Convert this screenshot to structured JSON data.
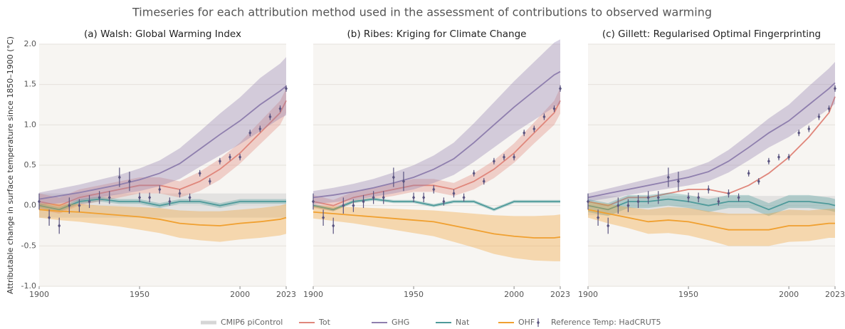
{
  "figure_title": "Timeseries for each attribution method used in the assessment of contributions to observed warming",
  "chart_data": [
    {
      "type": "line",
      "title": "(a) Walsh: Global Warming Index",
      "ylabel": "Attributable change in surface temperature since 1850–1900 (°C)",
      "show_ytick_labels": true,
      "x": [
        1900,
        1910,
        1920,
        1930,
        1940,
        1950,
        1960,
        1970,
        1980,
        1990,
        2000,
        2010,
        2020,
        2023
      ],
      "xlim": [
        1900,
        2023
      ],
      "xticks": [
        1900,
        1950,
        2000,
        2023
      ],
      "ylim": [
        -1,
        2
      ],
      "yticks": [
        {
          "value": -1,
          "label": "-1.0"
        },
        {
          "value": -0.5,
          "label": "-0.5"
        },
        {
          "value": 0,
          "label": "0.0"
        },
        {
          "value": 0.5,
          "label": "0.5"
        },
        {
          "value": 1,
          "label": "1.0"
        },
        {
          "value": 1.5,
          "label": "1.5"
        },
        {
          "value": 2,
          "label": "2.0"
        }
      ],
      "grid": true,
      "series": [
        {
          "name": "CMIP6 piControl",
          "color": "#d6d6d6",
          "lower": [
            -0.15,
            -0.15,
            -0.15,
            -0.15,
            -0.15,
            -0.15,
            -0.15,
            -0.15,
            -0.15,
            -0.15,
            -0.15,
            -0.15,
            -0.15,
            -0.15
          ],
          "upper": [
            0.15,
            0.15,
            0.15,
            0.15,
            0.15,
            0.15,
            0.15,
            0.15,
            0.15,
            0.15,
            0.15,
            0.15,
            0.15,
            0.15
          ]
        },
        {
          "name": "Tot",
          "color": "#e0877c",
          "values": [
            0.05,
            0.0,
            0.1,
            0.15,
            0.2,
            0.25,
            0.25,
            0.2,
            0.3,
            0.45,
            0.65,
            0.9,
            1.15,
            1.3
          ],
          "lower": [
            -0.05,
            -0.1,
            0.0,
            0.05,
            0.1,
            0.15,
            0.15,
            0.1,
            0.18,
            0.32,
            0.52,
            0.76,
            1.0,
            1.15
          ],
          "upper": [
            0.15,
            0.1,
            0.2,
            0.25,
            0.3,
            0.35,
            0.35,
            0.3,
            0.42,
            0.58,
            0.78,
            1.04,
            1.3,
            1.45
          ]
        },
        {
          "name": "GHG",
          "color": "#8f7fae",
          "values": [
            0.08,
            0.12,
            0.16,
            0.21,
            0.26,
            0.32,
            0.4,
            0.52,
            0.7,
            0.88,
            1.05,
            1.25,
            1.42,
            1.48
          ],
          "lower": [
            0.0,
            0.03,
            0.06,
            0.1,
            0.14,
            0.18,
            0.24,
            0.33,
            0.48,
            0.62,
            0.76,
            0.92,
            1.08,
            1.12
          ],
          "upper": [
            0.16,
            0.21,
            0.26,
            0.32,
            0.38,
            0.46,
            0.56,
            0.71,
            0.92,
            1.14,
            1.34,
            1.58,
            1.76,
            1.84
          ]
        },
        {
          "name": "Nat",
          "color": "#4e9a9a",
          "values": [
            0.0,
            -0.05,
            0.05,
            0.08,
            0.05,
            0.05,
            0.0,
            0.05,
            0.05,
            0.0,
            0.05,
            0.05,
            0.05,
            0.05
          ],
          "lower": [
            -0.03,
            -0.08,
            0.02,
            0.05,
            0.02,
            0.02,
            -0.03,
            0.02,
            0.02,
            -0.03,
            0.02,
            0.02,
            0.02,
            0.02
          ],
          "upper": [
            0.03,
            -0.02,
            0.08,
            0.11,
            0.08,
            0.08,
            0.03,
            0.08,
            0.08,
            0.03,
            0.08,
            0.08,
            0.08,
            0.08
          ]
        },
        {
          "name": "OHF",
          "color": "#f0a030",
          "values": [
            -0.05,
            -0.07,
            -0.08,
            -0.1,
            -0.12,
            -0.14,
            -0.17,
            -0.22,
            -0.24,
            -0.25,
            -0.22,
            -0.2,
            -0.17,
            -0.15
          ],
          "lower": [
            -0.15,
            -0.18,
            -0.2,
            -0.23,
            -0.26,
            -0.3,
            -0.34,
            -0.4,
            -0.43,
            -0.45,
            -0.42,
            -0.4,
            -0.37,
            -0.35
          ],
          "upper": [
            0.03,
            0.02,
            0.02,
            0.0,
            -0.01,
            -0.02,
            -0.03,
            -0.06,
            -0.07,
            -0.07,
            -0.05,
            -0.03,
            0.0,
            0.02
          ]
        }
      ],
      "observations": {
        "name": "Reference Temp: HadCRUT5",
        "color": "#5a5480",
        "x": [
          1900,
          1905,
          1910,
          1915,
          1920,
          1925,
          1930,
          1935,
          1940,
          1945,
          1950,
          1955,
          1960,
          1965,
          1970,
          1975,
          1980,
          1985,
          1990,
          1995,
          2000,
          2005,
          2010,
          2015,
          2020,
          2023
        ],
        "values": [
          0.05,
          -0.15,
          -0.25,
          0.0,
          0.0,
          0.05,
          0.1,
          0.1,
          0.35,
          0.3,
          0.1,
          0.1,
          0.2,
          0.05,
          0.15,
          0.1,
          0.4,
          0.3,
          0.55,
          0.6,
          0.6,
          0.9,
          0.95,
          1.1,
          1.2,
          1.45
        ],
        "errors": [
          0.1,
          0.1,
          0.1,
          0.1,
          0.08,
          0.08,
          0.08,
          0.08,
          0.12,
          0.12,
          0.06,
          0.06,
          0.05,
          0.05,
          0.05,
          0.05,
          0.04,
          0.04,
          0.04,
          0.04,
          0.04,
          0.04,
          0.04,
          0.04,
          0.04,
          0.04
        ]
      }
    },
    {
      "type": "line",
      "title": "(b) Ribes: Kriging for Climate Change",
      "show_ytick_labels": false,
      "x": [
        1900,
        1910,
        1920,
        1930,
        1940,
        1950,
        1960,
        1970,
        1980,
        1990,
        2000,
        2010,
        2020,
        2023
      ],
      "xlim": [
        1900,
        2023
      ],
      "xticks": [
        1900,
        1950,
        2000,
        2023
      ],
      "ylim": [
        -1,
        2
      ],
      "yticks": [
        -1,
        -0.5,
        0,
        0.5,
        1,
        1.5,
        2
      ],
      "grid": true,
      "series": [
        {
          "name": "Tot",
          "color": "#e0877c",
          "values": [
            0.05,
            0.0,
            0.1,
            0.15,
            0.2,
            0.25,
            0.25,
            0.2,
            0.3,
            0.45,
            0.65,
            0.9,
            1.15,
            1.3
          ],
          "lower": [
            -0.03,
            -0.07,
            0.03,
            0.08,
            0.12,
            0.17,
            0.17,
            0.12,
            0.2,
            0.34,
            0.53,
            0.77,
            1.0,
            1.14
          ],
          "upper": [
            0.13,
            0.07,
            0.17,
            0.22,
            0.28,
            0.33,
            0.33,
            0.28,
            0.4,
            0.56,
            0.77,
            1.03,
            1.3,
            1.46
          ]
        },
        {
          "name": "GHG",
          "color": "#8f7fae",
          "values": [
            0.1,
            0.13,
            0.17,
            0.22,
            0.28,
            0.35,
            0.45,
            0.58,
            0.78,
            1.0,
            1.22,
            1.42,
            1.62,
            1.66
          ],
          "lower": [
            0.02,
            0.04,
            0.07,
            0.11,
            0.15,
            0.2,
            0.28,
            0.38,
            0.54,
            0.72,
            0.9,
            1.06,
            1.22,
            1.26
          ],
          "upper": [
            0.18,
            0.22,
            0.27,
            0.33,
            0.41,
            0.5,
            0.62,
            0.78,
            1.02,
            1.28,
            1.54,
            1.78,
            2.02,
            2.06
          ]
        },
        {
          "name": "Nat",
          "color": "#4e9a9a",
          "values": [
            0.0,
            -0.05,
            0.05,
            0.08,
            0.05,
            0.05,
            0.0,
            0.05,
            0.05,
            -0.05,
            0.05,
            0.05,
            0.05,
            0.05
          ],
          "lower": [
            -0.02,
            -0.07,
            0.03,
            0.06,
            0.03,
            0.03,
            -0.02,
            0.03,
            0.03,
            -0.07,
            0.03,
            0.03,
            0.03,
            0.03
          ],
          "upper": [
            0.02,
            -0.03,
            0.07,
            0.1,
            0.07,
            0.07,
            0.02,
            0.07,
            0.07,
            -0.03,
            0.07,
            0.07,
            0.07,
            0.07
          ]
        },
        {
          "name": "OHF",
          "color": "#f0a030",
          "values": [
            -0.08,
            -0.1,
            -0.12,
            -0.14,
            -0.16,
            -0.18,
            -0.2,
            -0.25,
            -0.3,
            -0.35,
            -0.38,
            -0.4,
            -0.4,
            -0.39
          ],
          "lower": [
            -0.16,
            -0.19,
            -0.22,
            -0.26,
            -0.3,
            -0.34,
            -0.38,
            -0.45,
            -0.52,
            -0.6,
            -0.65,
            -0.68,
            -0.69,
            -0.69
          ],
          "upper": [
            0.0,
            -0.01,
            -0.02,
            -0.03,
            -0.04,
            -0.05,
            -0.06,
            -0.08,
            -0.1,
            -0.12,
            -0.13,
            -0.13,
            -0.12,
            -0.11
          ]
        }
      ],
      "observations": {
        "name": "Reference Temp: HadCRUT5",
        "color": "#5a5480",
        "x": [
          1900,
          1905,
          1910,
          1915,
          1920,
          1925,
          1930,
          1935,
          1940,
          1945,
          1950,
          1955,
          1960,
          1965,
          1970,
          1975,
          1980,
          1985,
          1990,
          1995,
          2000,
          2005,
          2010,
          2015,
          2020,
          2023
        ],
        "values": [
          0.05,
          -0.15,
          -0.25,
          0.0,
          0.0,
          0.05,
          0.1,
          0.1,
          0.35,
          0.3,
          0.1,
          0.1,
          0.2,
          0.05,
          0.15,
          0.1,
          0.4,
          0.3,
          0.55,
          0.6,
          0.6,
          0.9,
          0.95,
          1.1,
          1.2,
          1.45
        ],
        "errors": [
          0.1,
          0.1,
          0.1,
          0.1,
          0.08,
          0.08,
          0.08,
          0.08,
          0.12,
          0.12,
          0.06,
          0.06,
          0.05,
          0.05,
          0.05,
          0.05,
          0.04,
          0.04,
          0.04,
          0.04,
          0.04,
          0.04,
          0.04,
          0.04,
          0.04,
          0.04
        ]
      }
    },
    {
      "type": "line",
      "title": "(c) Gillett: Regularised Optimal Fingerprinting",
      "show_ytick_labels": false,
      "x": [
        1900,
        1910,
        1920,
        1930,
        1940,
        1950,
        1960,
        1970,
        1980,
        1990,
        2000,
        2010,
        2020,
        2023
      ],
      "xlim": [
        1900,
        2023
      ],
      "xticks": [
        1900,
        1950,
        2000,
        2023
      ],
      "ylim": [
        -1,
        2
      ],
      "yticks": [
        -1,
        -0.5,
        0,
        0.5,
        1,
        1.5,
        2
      ],
      "grid": true,
      "series": [
        {
          "name": "CMIP6 piControl",
          "color": "#d6d6d6",
          "lower": [
            -0.12,
            -0.12,
            -0.12,
            -0.12,
            -0.12,
            -0.12,
            -0.12,
            -0.12,
            -0.12,
            -0.12,
            -0.12,
            -0.12,
            -0.12,
            -0.12
          ],
          "upper": [
            0.12,
            0.12,
            0.12,
            0.12,
            0.12,
            0.12,
            0.12,
            0.12,
            0.12,
            0.12,
            0.12,
            0.12,
            0.12,
            0.12
          ]
        },
        {
          "name": "Tot",
          "color": "#e0877c",
          "values": [
            0.05,
            0.0,
            0.1,
            0.1,
            0.15,
            0.2,
            0.2,
            0.15,
            0.25,
            0.4,
            0.6,
            0.85,
            1.15,
            1.35
          ]
        },
        {
          "name": "GHG",
          "color": "#8f7fae",
          "values": [
            0.1,
            0.15,
            0.2,
            0.25,
            0.3,
            0.35,
            0.42,
            0.55,
            0.72,
            0.9,
            1.05,
            1.25,
            1.45,
            1.52
          ],
          "lower": [
            0.05,
            0.09,
            0.13,
            0.17,
            0.21,
            0.25,
            0.3,
            0.41,
            0.56,
            0.72,
            0.85,
            1.02,
            1.2,
            1.26
          ],
          "upper": [
            0.15,
            0.21,
            0.27,
            0.33,
            0.39,
            0.45,
            0.54,
            0.69,
            0.88,
            1.08,
            1.25,
            1.48,
            1.7,
            1.78
          ]
        },
        {
          "name": "Nat",
          "color": "#4e9a9a",
          "values": [
            0.0,
            -0.05,
            0.05,
            0.05,
            0.08,
            0.05,
            0.0,
            0.05,
            0.05,
            -0.05,
            0.05,
            0.05,
            0.02,
            0.0
          ],
          "lower": [
            -0.08,
            -0.13,
            -0.03,
            -0.03,
            0.0,
            -0.03,
            -0.08,
            -0.03,
            -0.03,
            -0.13,
            -0.03,
            -0.03,
            -0.06,
            -0.08
          ],
          "upper": [
            0.08,
            0.03,
            0.13,
            0.13,
            0.16,
            0.13,
            0.08,
            0.13,
            0.13,
            0.03,
            0.13,
            0.13,
            0.1,
            0.08
          ]
        },
        {
          "name": "OHF",
          "color": "#f0a030",
          "values": [
            -0.05,
            -0.1,
            -0.15,
            -0.2,
            -0.18,
            -0.2,
            -0.25,
            -0.3,
            -0.3,
            -0.3,
            -0.25,
            -0.25,
            -0.22,
            -0.22
          ],
          "lower": [
            -0.15,
            -0.22,
            -0.28,
            -0.35,
            -0.34,
            -0.37,
            -0.43,
            -0.5,
            -0.5,
            -0.5,
            -0.45,
            -0.44,
            -0.4,
            -0.4
          ],
          "upper": [
            0.05,
            0.02,
            -0.02,
            -0.05,
            -0.02,
            -0.03,
            -0.07,
            -0.1,
            -0.1,
            -0.1,
            -0.05,
            -0.06,
            -0.04,
            -0.04
          ]
        }
      ],
      "observations": {
        "name": "Reference Temp: HadCRUT5",
        "color": "#5a5480",
        "x": [
          1900,
          1905,
          1910,
          1915,
          1920,
          1925,
          1930,
          1935,
          1940,
          1945,
          1950,
          1955,
          1960,
          1965,
          1970,
          1975,
          1980,
          1985,
          1990,
          1995,
          2000,
          2005,
          2010,
          2015,
          2020,
          2023
        ],
        "values": [
          0.05,
          -0.15,
          -0.25,
          0.0,
          0.0,
          0.05,
          0.1,
          0.1,
          0.35,
          0.3,
          0.1,
          0.1,
          0.2,
          0.05,
          0.15,
          0.1,
          0.4,
          0.3,
          0.55,
          0.6,
          0.6,
          0.9,
          0.95,
          1.1,
          1.2,
          1.45
        ],
        "errors": [
          0.1,
          0.1,
          0.1,
          0.1,
          0.08,
          0.08,
          0.08,
          0.08,
          0.12,
          0.12,
          0.06,
          0.06,
          0.05,
          0.05,
          0.05,
          0.05,
          0.04,
          0.04,
          0.04,
          0.04,
          0.04,
          0.04,
          0.04,
          0.04,
          0.04,
          0.04
        ]
      }
    }
  ]
}
